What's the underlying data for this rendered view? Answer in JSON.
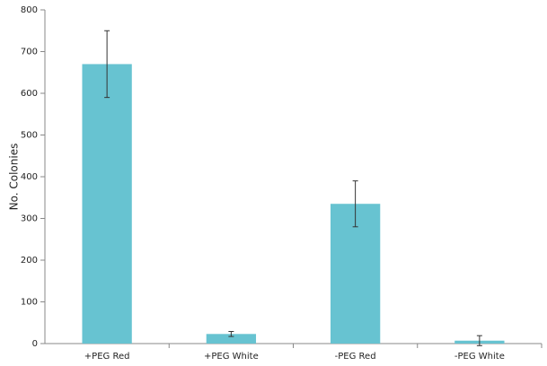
{
  "chart_data": {
    "type": "bar",
    "y_label": "No. Colonies",
    "categories": [
      "+PEG Red",
      "+PEG White",
      "-PEG Red",
      "-PEG White"
    ],
    "values": [
      670,
      23,
      335,
      7
    ],
    "errors": [
      80,
      6,
      55,
      12
    ],
    "color": "#67c3d1",
    "ylim": [
      0,
      800
    ],
    "yticks": [
      0,
      100,
      200,
      300,
      400,
      500,
      600,
      700,
      800
    ],
    "grid": false
  }
}
